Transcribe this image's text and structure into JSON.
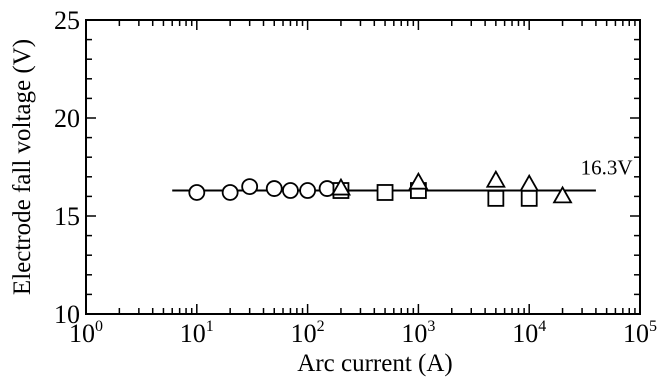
{
  "chart_data": {
    "type": "scatter",
    "title": "",
    "xlabel": "Arc current  (A)",
    "ylabel": "Electrode fall voltage  (V)",
    "xscale": "log",
    "xlim": [
      1,
      100000
    ],
    "ylim": [
      10,
      25
    ],
    "x_ticks": [
      {
        "value": 1,
        "base": "10",
        "exp": "0"
      },
      {
        "value": 10,
        "base": "10",
        "exp": "1"
      },
      {
        "value": 100,
        "base": "10",
        "exp": "2"
      },
      {
        "value": 1000,
        "base": "10",
        "exp": "3"
      },
      {
        "value": 10000,
        "base": "10",
        "exp": "4"
      },
      {
        "value": 100000,
        "base": "10",
        "exp": "5"
      }
    ],
    "y_ticks": [
      {
        "value": 10,
        "label": "10"
      },
      {
        "value": 15,
        "label": "15"
      },
      {
        "value": 20,
        "label": "20"
      },
      {
        "value": 25,
        "label": "25"
      }
    ],
    "grid": false,
    "legend": "none",
    "series": [
      {
        "marker": "circle",
        "points": [
          [
            10,
            16.2
          ],
          [
            20,
            16.2
          ],
          [
            30,
            16.5
          ],
          [
            50,
            16.4
          ],
          [
            70,
            16.3
          ],
          [
            100,
            16.3
          ],
          [
            150,
            16.4
          ]
        ]
      },
      {
        "marker": "square",
        "points": [
          [
            200,
            16.3
          ],
          [
            500,
            16.2
          ],
          [
            1000,
            16.3
          ],
          [
            5000,
            15.9
          ],
          [
            10000,
            15.9
          ]
        ]
      },
      {
        "marker": "triangle",
        "points": [
          [
            200,
            16.4
          ],
          [
            1000,
            16.7
          ],
          [
            5000,
            16.8
          ],
          [
            10000,
            16.6
          ],
          [
            20000,
            16.0
          ]
        ]
      }
    ],
    "fit_line": {
      "x_range": [
        6,
        40000
      ],
      "y": 16.3
    },
    "annotations": [
      {
        "text": "16.3V",
        "x": 50000,
        "y": 16.5
      }
    ]
  }
}
